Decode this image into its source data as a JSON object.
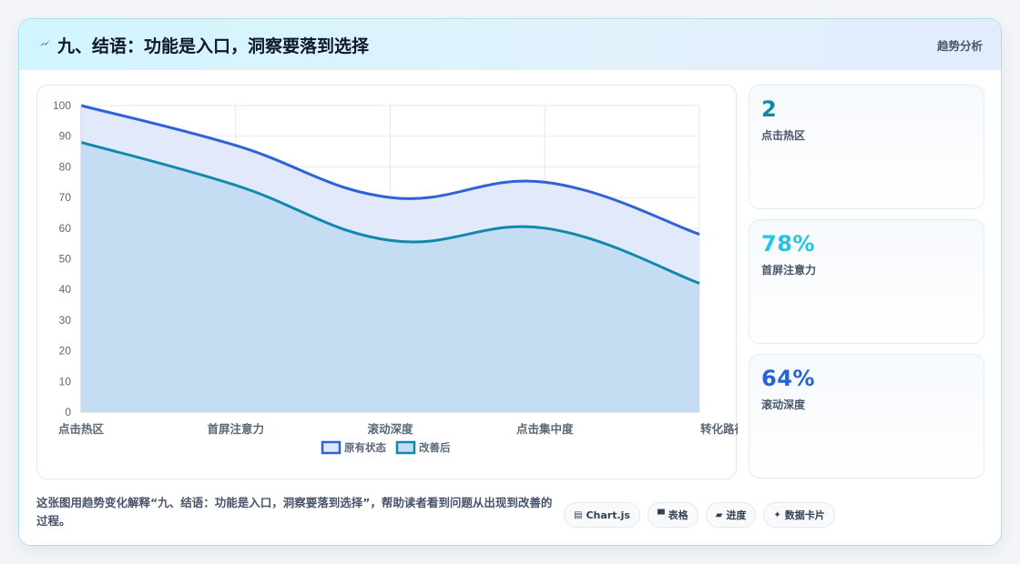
{
  "header": {
    "icon": "lightning-icon",
    "title": "九、结语：功能是入口，洞察要落到选择",
    "tag": "趋势分析"
  },
  "stats": [
    {
      "value": "2",
      "label": "点击热区",
      "color": "#0e8aa8"
    },
    {
      "value": "78%",
      "label": "首屏注意力",
      "color": "#22c5e0"
    },
    {
      "value": "64%",
      "label": "滚动深度",
      "color": "#2563d6"
    }
  ],
  "footer": {
    "description": "这张图用趋势变化解释“九、结语：功能是入口，洞察要落到选择”，帮助读者看到问题从出现到改善的过程。",
    "pills": [
      {
        "icon": "▤",
        "label": "Chart.js"
      },
      {
        "icon": "▀",
        "label": "表格"
      },
      {
        "icon": "▰",
        "label": "进度"
      },
      {
        "icon": "✦",
        "label": "数据卡片"
      }
    ]
  },
  "chart_data": {
    "type": "area",
    "categories": [
      "点击热区",
      "首屏注意力",
      "滚动深度",
      "点击集中度",
      "转化路径"
    ],
    "series": [
      {
        "name": "原有状态",
        "values": [
          100,
          87,
          70,
          75,
          58
        ],
        "color": "#2f62d6",
        "fill": "#dfe8fb"
      },
      {
        "name": "改善后",
        "values": [
          88,
          74,
          56,
          60,
          42
        ],
        "color": "#1189ad",
        "fill": "#c3dcf1"
      }
    ],
    "yticks": [
      0,
      10,
      20,
      30,
      40,
      50,
      60,
      70,
      80,
      90,
      100
    ],
    "ylim": [
      0,
      100
    ],
    "grid": true,
    "legend": "bottom"
  }
}
